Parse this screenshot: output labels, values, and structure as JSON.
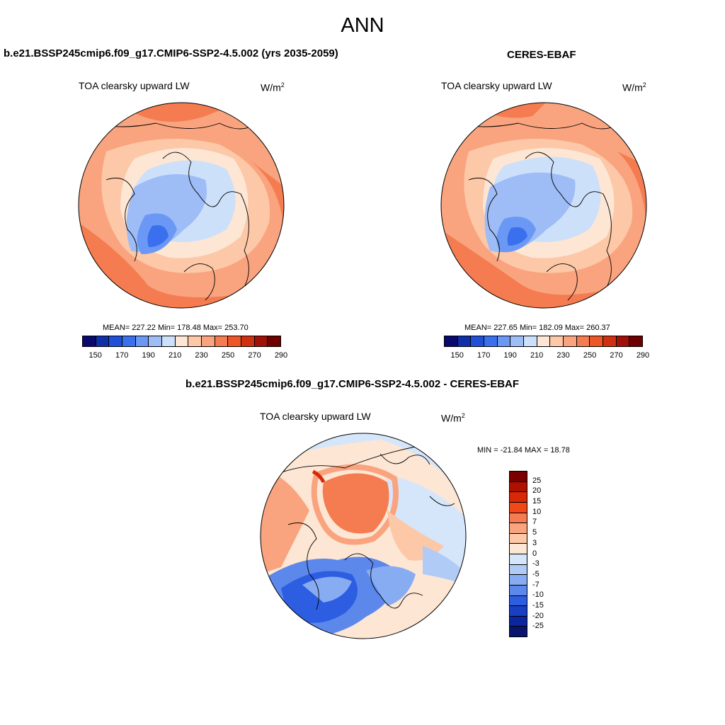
{
  "main_title": "ANN",
  "panels": {
    "model": {
      "title": "b.e21.BSSP245cmip6.f09_g17.CMIP6-SSP2-4.5.002 (yrs 2035-2059)",
      "variable": "TOA clearsky upward LW",
      "units_base": "W/m",
      "units_exp": "2",
      "stats": "MEAN= 227.22  Min= 178.48  Max= 253.70"
    },
    "obs": {
      "title": "CERES-EBAF",
      "variable": "TOA clearsky upward LW",
      "units_base": "W/m",
      "units_exp": "2",
      "stats": "MEAN= 227.65  Min= 182.09  Max= 260.37"
    },
    "diff": {
      "title": "b.e21.BSSP245cmip6.f09_g17.CMIP6-SSP2-4.5.002 - CERES-EBAF",
      "variable": "TOA clearsky upward LW",
      "units_base": "W/m",
      "units_exp": "2",
      "stats": "MIN = -21.84 MAX =  18.78"
    }
  },
  "colorbar_main": {
    "colors": [
      "#0a0a6e",
      "#1030a8",
      "#2050d8",
      "#3a70ee",
      "#6a98f4",
      "#9ebcf6",
      "#cce0fa",
      "#fde6d4",
      "#fcc8a8",
      "#f9a47e",
      "#f57c50",
      "#ee5628",
      "#d03010",
      "#a01008",
      "#6e0000"
    ],
    "tick_labels": [
      "150",
      "170",
      "190",
      "210",
      "230",
      "250",
      "270",
      "290"
    ]
  },
  "colorbar_diff": {
    "colors": [
      "#7a0000",
      "#b01000",
      "#d82808",
      "#f24818",
      "#f57c50",
      "#f9a47e",
      "#fcc8a8",
      "#fde6d4",
      "#d6e6fa",
      "#b0ccf6",
      "#88acf2",
      "#5c88ec",
      "#2d5ee2",
      "#1a3ec4",
      "#0c26a0",
      "#08146e"
    ],
    "tick_labels": [
      "25",
      "20",
      "15",
      "10",
      "7",
      "5",
      "3",
      "0",
      "-3",
      "-5",
      "-7",
      "-10",
      "-15",
      "-20",
      "-25"
    ]
  }
}
